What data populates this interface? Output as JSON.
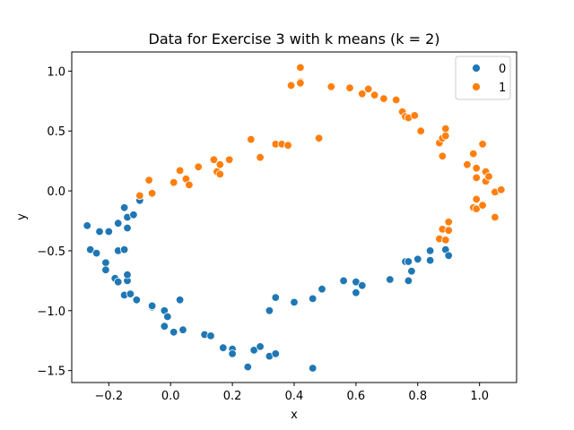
{
  "chart_data": {
    "type": "scatter",
    "title": "Data for Exercise 3 with k means (k = 2)",
    "xlabel": "x",
    "ylabel": "y",
    "xlim": [
      -0.32,
      1.12
    ],
    "ylim": [
      -1.6,
      1.16
    ],
    "xticks": [
      -0.2,
      0.0,
      0.2,
      0.4,
      0.6,
      0.8,
      1.0
    ],
    "xtick_labels": [
      "−0.2",
      "0.0",
      "0.2",
      "0.4",
      "0.6",
      "0.8",
      "1.0"
    ],
    "yticks": [
      -1.5,
      -1.0,
      -0.5,
      0.0,
      0.5,
      1.0
    ],
    "ytick_labels": [
      "−1.5",
      "−1.0",
      "−0.5",
      "0.0",
      "0.5",
      "1.0"
    ],
    "grid": false,
    "legend": {
      "placement": "top-right",
      "entries": [
        "0",
        "1"
      ]
    },
    "series": [
      {
        "name": "0",
        "color": "#1f77b4",
        "points": [
          [
            -0.27,
            -0.29
          ],
          [
            -0.26,
            -0.49
          ],
          [
            -0.24,
            -0.52
          ],
          [
            -0.23,
            -0.34
          ],
          [
            -0.21,
            -0.6
          ],
          [
            -0.21,
            -0.66
          ],
          [
            -0.2,
            -0.34
          ],
          [
            -0.18,
            -0.73
          ],
          [
            -0.17,
            -0.76
          ],
          [
            -0.17,
            -0.5
          ],
          [
            -0.17,
            -0.27
          ],
          [
            -0.15,
            -0.87
          ],
          [
            -0.15,
            -0.49
          ],
          [
            -0.14,
            -0.75
          ],
          [
            -0.14,
            -0.7
          ],
          [
            -0.14,
            -0.31
          ],
          [
            -0.14,
            -0.22
          ],
          [
            -0.15,
            -0.14
          ],
          [
            -0.13,
            -0.86
          ],
          [
            -0.12,
            -0.2
          ],
          [
            -0.11,
            -0.91
          ],
          [
            -0.1,
            -0.08
          ],
          [
            -0.06,
            -0.97
          ],
          [
            -0.06,
            -0.96
          ],
          [
            -0.02,
            -1.0
          ],
          [
            -0.02,
            -1.13
          ],
          [
            -0.01,
            -1.05
          ],
          [
            0.01,
            -1.18
          ],
          [
            0.03,
            -0.91
          ],
          [
            0.04,
            -1.16
          ],
          [
            0.11,
            -1.2
          ],
          [
            0.13,
            -1.21
          ],
          [
            0.17,
            -1.31
          ],
          [
            0.2,
            -1.32
          ],
          [
            0.2,
            -1.36
          ],
          [
            0.25,
            -1.47
          ],
          [
            0.27,
            -1.33
          ],
          [
            0.29,
            -1.3
          ],
          [
            0.32,
            -1.38
          ],
          [
            0.32,
            -1.0
          ],
          [
            0.34,
            -0.89
          ],
          [
            0.34,
            -1.36
          ],
          [
            0.4,
            -0.93
          ],
          [
            0.46,
            -0.9
          ],
          [
            0.46,
            -1.48
          ],
          [
            0.49,
            -0.82
          ],
          [
            0.56,
            -0.75
          ],
          [
            0.6,
            -0.76
          ],
          [
            0.6,
            -0.85
          ],
          [
            0.62,
            -0.79
          ],
          [
            0.71,
            -0.74
          ],
          [
            0.76,
            -0.59
          ],
          [
            0.77,
            -0.59
          ],
          [
            0.77,
            -0.75
          ],
          [
            0.78,
            -0.67
          ],
          [
            0.8,
            -0.57
          ],
          [
            0.84,
            -0.58
          ],
          [
            0.84,
            -0.5
          ],
          [
            0.89,
            -0.49
          ],
          [
            0.9,
            -0.54
          ]
        ]
      },
      {
        "name": "1",
        "color": "#ff7f0e",
        "points": [
          [
            -0.1,
            -0.04
          ],
          [
            -0.07,
            0.09
          ],
          [
            -0.06,
            -0.02
          ],
          [
            0.01,
            0.07
          ],
          [
            0.03,
            0.17
          ],
          [
            0.05,
            0.1
          ],
          [
            0.06,
            0.05
          ],
          [
            0.09,
            0.2
          ],
          [
            0.14,
            0.26
          ],
          [
            0.15,
            0.16
          ],
          [
            0.16,
            0.14
          ],
          [
            0.16,
            0.22
          ],
          [
            0.19,
            0.26
          ],
          [
            0.26,
            0.43
          ],
          [
            0.29,
            0.28
          ],
          [
            0.34,
            0.39
          ],
          [
            0.36,
            0.39
          ],
          [
            0.38,
            0.38
          ],
          [
            0.39,
            0.88
          ],
          [
            0.42,
            0.91
          ],
          [
            0.42,
            0.9
          ],
          [
            0.42,
            1.03
          ],
          [
            0.48,
            0.44
          ],
          [
            0.52,
            0.87
          ],
          [
            0.58,
            0.86
          ],
          [
            0.62,
            0.81
          ],
          [
            0.64,
            0.85
          ],
          [
            0.66,
            0.8
          ],
          [
            0.69,
            0.77
          ],
          [
            0.73,
            0.76
          ],
          [
            0.75,
            0.66
          ],
          [
            0.76,
            0.62
          ],
          [
            0.77,
            0.61
          ],
          [
            0.79,
            0.63
          ],
          [
            0.81,
            0.5
          ],
          [
            0.87,
            0.4
          ],
          [
            0.88,
            0.29
          ],
          [
            0.88,
            0.44
          ],
          [
            0.89,
            0.46
          ],
          [
            0.89,
            0.52
          ],
          [
            0.9,
            -0.26
          ],
          [
            0.88,
            -0.32
          ],
          [
            0.87,
            -0.4
          ],
          [
            0.89,
            -0.41
          ],
          [
            0.9,
            -0.33
          ],
          [
            0.96,
            0.22
          ],
          [
            0.98,
            0.31
          ],
          [
            0.98,
            -0.14
          ],
          [
            0.99,
            -0.07
          ],
          [
            0.99,
            -0.15
          ],
          [
            0.99,
            0.19
          ],
          [
            0.99,
            0.11
          ],
          [
            1.01,
            0.39
          ],
          [
            1.01,
            -0.12
          ],
          [
            1.02,
            0.16
          ],
          [
            1.02,
            0.08
          ],
          [
            1.03,
            0.12
          ],
          [
            1.05,
            -0.01
          ],
          [
            1.05,
            -0.22
          ],
          [
            1.07,
            0.01
          ]
        ]
      }
    ]
  }
}
